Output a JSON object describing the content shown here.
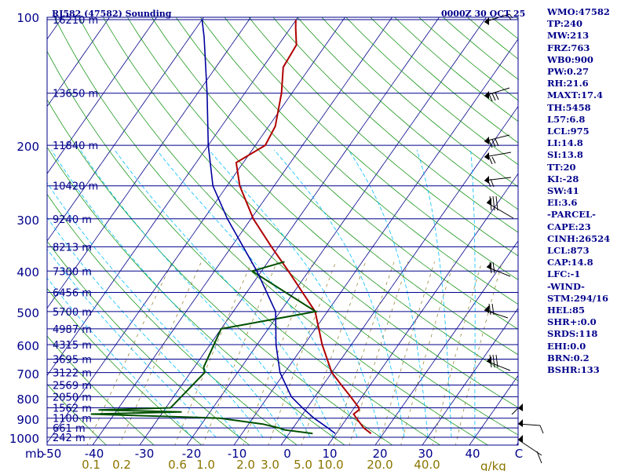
{
  "header": {
    "station": "RJ582 (47582) Sounding",
    "time": "0000Z 30 OCT 25"
  },
  "colors": {
    "frame": "#00008b",
    "isobar": "#00008b",
    "isotherm": "#00008b",
    "dry_adiabat": "#008b00",
    "moist_adiabat": "#00bfff",
    "mixing_ratio": "#8b7d2a",
    "temperature": "#b00000",
    "dewpoint": "#005000",
    "wetbulb": "#0000a0",
    "wind": "#000000",
    "tick_label": "#00008b",
    "mixing_label": "#8b7500"
  },
  "axes": {
    "temp_unit_label": "mb",
    "mixing_unit_label": "g/kg"
  },
  "indices": [
    "WMO:47582",
    "TP:240",
    "MW:213",
    "FRZ:763",
    "WB0:900",
    "PW:0.27",
    "RH:21.6",
    "MAXT:17.4",
    "TH:5458",
    "L57:6.8",
    "LCL:975",
    "LI:14.8",
    "SI:13.8",
    "TT:20",
    "KI:-28",
    "SW:41",
    "EI:3.6",
    "-PARCEL-",
    "CAPE:23",
    "CINH:26524",
    "LCL:873",
    "CAP:14.8",
    "LFC:-1",
    "-WIND-",
    "STM:294/16",
    "HEL:85",
    "SHR+:0.0",
    "SRDS:118",
    "EHI:0.0",
    "BRN:0.2",
    "BSHR:133"
  ],
  "chart_data": {
    "type": "skew-t log-p sounding",
    "pressure_range_mb": [
      1000,
      100
    ],
    "temperature_range_c": [
      -50,
      50
    ],
    "pressure_ticks": [
      "100",
      "200",
      "300",
      "400",
      "500",
      "600",
      "700",
      "800",
      "900",
      "1000"
    ],
    "temperature_ticks": [
      "-50",
      "-40",
      "-30",
      "-20",
      "-10",
      "0",
      "10",
      "20",
      "30",
      "40",
      "C"
    ],
    "mixing_ratio_ticks": [
      "0.1",
      "0.2",
      "0.6",
      "1.0",
      "2.0",
      "3.0",
      "5.0",
      "10.0",
      "20.0",
      "40.0"
    ],
    "height_labels": [
      {
        "p": 1000,
        "text": "242 m"
      },
      {
        "p": 950,
        "text": "661 m"
      },
      {
        "p": 900,
        "text": "1100 m"
      },
      {
        "p": 850,
        "text": "1562 m"
      },
      {
        "p": 800,
        "text": "2050 m"
      },
      {
        "p": 750,
        "text": "2569 m"
      },
      {
        "p": 700,
        "text": "3122 m"
      },
      {
        "p": 650,
        "text": "3695 m"
      },
      {
        "p": 600,
        "text": "4315 m"
      },
      {
        "p": 550,
        "text": "4987 m"
      },
      {
        "p": 500,
        "text": "5700 m"
      },
      {
        "p": 450,
        "text": "6456 m"
      },
      {
        "p": 400,
        "text": "7300 m"
      },
      {
        "p": 350,
        "text": "8213 m"
      },
      {
        "p": 300,
        "text": "9240 m"
      },
      {
        "p": 250,
        "text": "10420 m"
      },
      {
        "p": 200,
        "text": "11840 m"
      },
      {
        "p": 150,
        "text": "13650 m"
      },
      {
        "p": 100,
        "text": "16210 m"
      }
    ],
    "temperature": [
      {
        "p": 980,
        "t": 17.4
      },
      {
        "p": 950,
        "t": 15.0
      },
      {
        "p": 900,
        "t": 12.0
      },
      {
        "p": 880,
        "t": 10.8
      },
      {
        "p": 860,
        "t": 11.3
      },
      {
        "p": 850,
        "t": 11.0
      },
      {
        "p": 800,
        "t": 7.6
      },
      {
        "p": 750,
        "t": 3.9
      },
      {
        "p": 700,
        "t": 0.0
      },
      {
        "p": 600,
        "t": -6.2
      },
      {
        "p": 500,
        "t": -12.6
      },
      {
        "p": 400,
        "t": -24.3
      },
      {
        "p": 350,
        "t": -31.5
      },
      {
        "p": 300,
        "t": -39.5
      },
      {
        "p": 250,
        "t": -47.3
      },
      {
        "p": 220,
        "t": -51.5
      },
      {
        "p": 200,
        "t": -47.9
      },
      {
        "p": 180,
        "t": -48.6
      },
      {
        "p": 150,
        "t": -52.2
      },
      {
        "p": 130,
        "t": -55.7
      },
      {
        "p": 115,
        "t": -56.2
      },
      {
        "p": 105,
        "t": -58.8
      },
      {
        "p": 100,
        "t": -60.1
      }
    ],
    "dewpoint": [
      {
        "p": 980,
        "td": 5.0
      },
      {
        "p": 960,
        "td": -1.5
      },
      {
        "p": 950,
        "td": -3.0
      },
      {
        "p": 930,
        "td": -7.0
      },
      {
        "p": 900,
        "td": -17.0
      },
      {
        "p": 880,
        "td": -45.0
      },
      {
        "p": 870,
        "td": -26.0
      },
      {
        "p": 860,
        "td": -44.0
      },
      {
        "p": 850,
        "td": -29.0
      },
      {
        "p": 700,
        "td": -27.0
      },
      {
        "p": 680,
        "td": -28.0
      },
      {
        "p": 550,
        "td": -30.0
      },
      {
        "p": 500,
        "td": -12.5
      },
      {
        "p": 400,
        "td": -32.0
      },
      {
        "p": 380,
        "td": -26.5
      }
    ],
    "wetbulb": [
      {
        "p": 980,
        "tw": 9.8
      },
      {
        "p": 950,
        "tw": 7.4
      },
      {
        "p": 900,
        "tw": 3.0
      },
      {
        "p": 850,
        "tw": -1.0
      },
      {
        "p": 800,
        "tw": -5.0
      },
      {
        "p": 700,
        "tw": -11.0
      },
      {
        "p": 600,
        "tw": -16.0
      },
      {
        "p": 500,
        "tw": -21.0
      },
      {
        "p": 400,
        "tw": -31.0
      },
      {
        "p": 300,
        "tw": -45.0
      },
      {
        "p": 250,
        "tw": -53.0
      },
      {
        "p": 200,
        "tw": -60.0
      },
      {
        "p": 150,
        "tw": -68.0
      },
      {
        "p": 110,
        "tw": -77.0
      },
      {
        "p": 100,
        "tw": -80.0
      }
    ],
    "wind_barbs_px_y": null
  }
}
